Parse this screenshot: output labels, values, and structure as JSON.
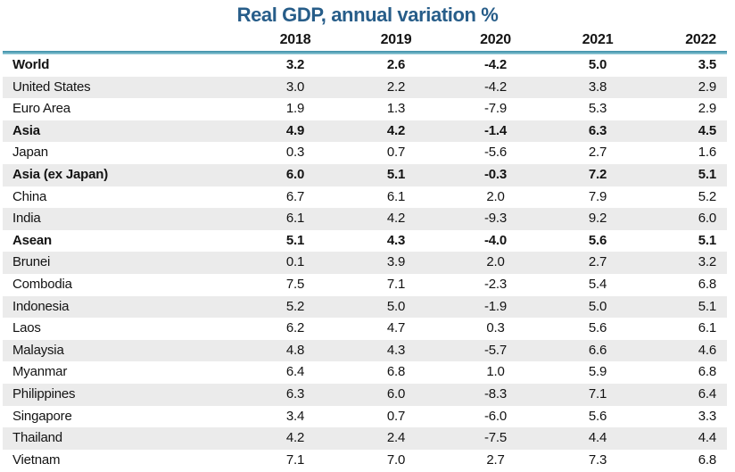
{
  "title": "Real GDP, annual variation %",
  "colors": {
    "title_text": "#275d89",
    "header_rule_teal": "#5fa8bd",
    "stripe_gray": "#ebebeb",
    "body_text": "#131313"
  },
  "chart_data": {
    "type": "table",
    "title": "Real GDP, annual variation %",
    "columns": [
      "2018",
      "2019",
      "2020",
      "2021",
      "2022"
    ],
    "series": [
      {
        "name": "World",
        "bold": true,
        "values": [
          "3.2",
          "2.6",
          "-4.2",
          "5.0",
          "3.5"
        ]
      },
      {
        "name": "United States",
        "bold": false,
        "values": [
          "3.0",
          "2.2",
          "-4.2",
          "3.8",
          "2.9"
        ]
      },
      {
        "name": "Euro Area",
        "bold": false,
        "values": [
          "1.9",
          "1.3",
          "-7.9",
          "5.3",
          "2.9"
        ]
      },
      {
        "name": "Asia",
        "bold": true,
        "values": [
          "4.9",
          "4.2",
          "-1.4",
          "6.3",
          "4.5"
        ]
      },
      {
        "name": "Japan",
        "bold": false,
        "values": [
          "0.3",
          "0.7",
          "-5.6",
          "2.7",
          "1.6"
        ]
      },
      {
        "name": "Asia (ex Japan)",
        "bold": true,
        "values": [
          "6.0",
          "5.1",
          "-0.3",
          "7.2",
          "5.1"
        ]
      },
      {
        "name": "China",
        "bold": false,
        "values": [
          "6.7",
          "6.1",
          "2.0",
          "7.9",
          "5.2"
        ]
      },
      {
        "name": "India",
        "bold": false,
        "values": [
          "6.1",
          "4.2",
          "-9.3",
          "9.2",
          "6.0"
        ]
      },
      {
        "name": "Asean",
        "bold": true,
        "values": [
          "5.1",
          "4.3",
          "-4.0",
          "5.6",
          "5.1"
        ]
      },
      {
        "name": "Brunei",
        "bold": false,
        "values": [
          "0.1",
          "3.9",
          "2.0",
          "2.7",
          "3.2"
        ]
      },
      {
        "name": "Combodia",
        "bold": false,
        "values": [
          "7.5",
          "7.1",
          "-2.3",
          "5.4",
          "6.8"
        ]
      },
      {
        "name": "Indonesia",
        "bold": false,
        "values": [
          "5.2",
          "5.0",
          "-1.9",
          "5.0",
          "5.1"
        ]
      },
      {
        "name": "Laos",
        "bold": false,
        "values": [
          "6.2",
          "4.7",
          "0.3",
          "5.6",
          "6.1"
        ]
      },
      {
        "name": "Malaysia",
        "bold": false,
        "values": [
          "4.8",
          "4.3",
          "-5.7",
          "6.6",
          "4.6"
        ]
      },
      {
        "name": "Myanmar",
        "bold": false,
        "values": [
          "6.4",
          "6.8",
          "1.0",
          "5.9",
          "6.8"
        ]
      },
      {
        "name": "Philippines",
        "bold": false,
        "values": [
          "6.3",
          "6.0",
          "-8.3",
          "7.1",
          "6.4"
        ]
      },
      {
        "name": "Singapore",
        "bold": false,
        "values": [
          "3.4",
          "0.7",
          "-6.0",
          "5.6",
          "3.3"
        ]
      },
      {
        "name": "Thailand",
        "bold": false,
        "values": [
          "4.2",
          "2.4",
          "-7.5",
          "4.4",
          "4.4"
        ]
      },
      {
        "name": "Vietnam",
        "bold": false,
        "values": [
          "7.1",
          "7.0",
          "2.7",
          "7.3",
          "6.8"
        ]
      }
    ],
    "layout": {
      "striped": true,
      "first_row_background": "white",
      "grid": "off",
      "value_alignment": "centered-under-year"
    }
  }
}
